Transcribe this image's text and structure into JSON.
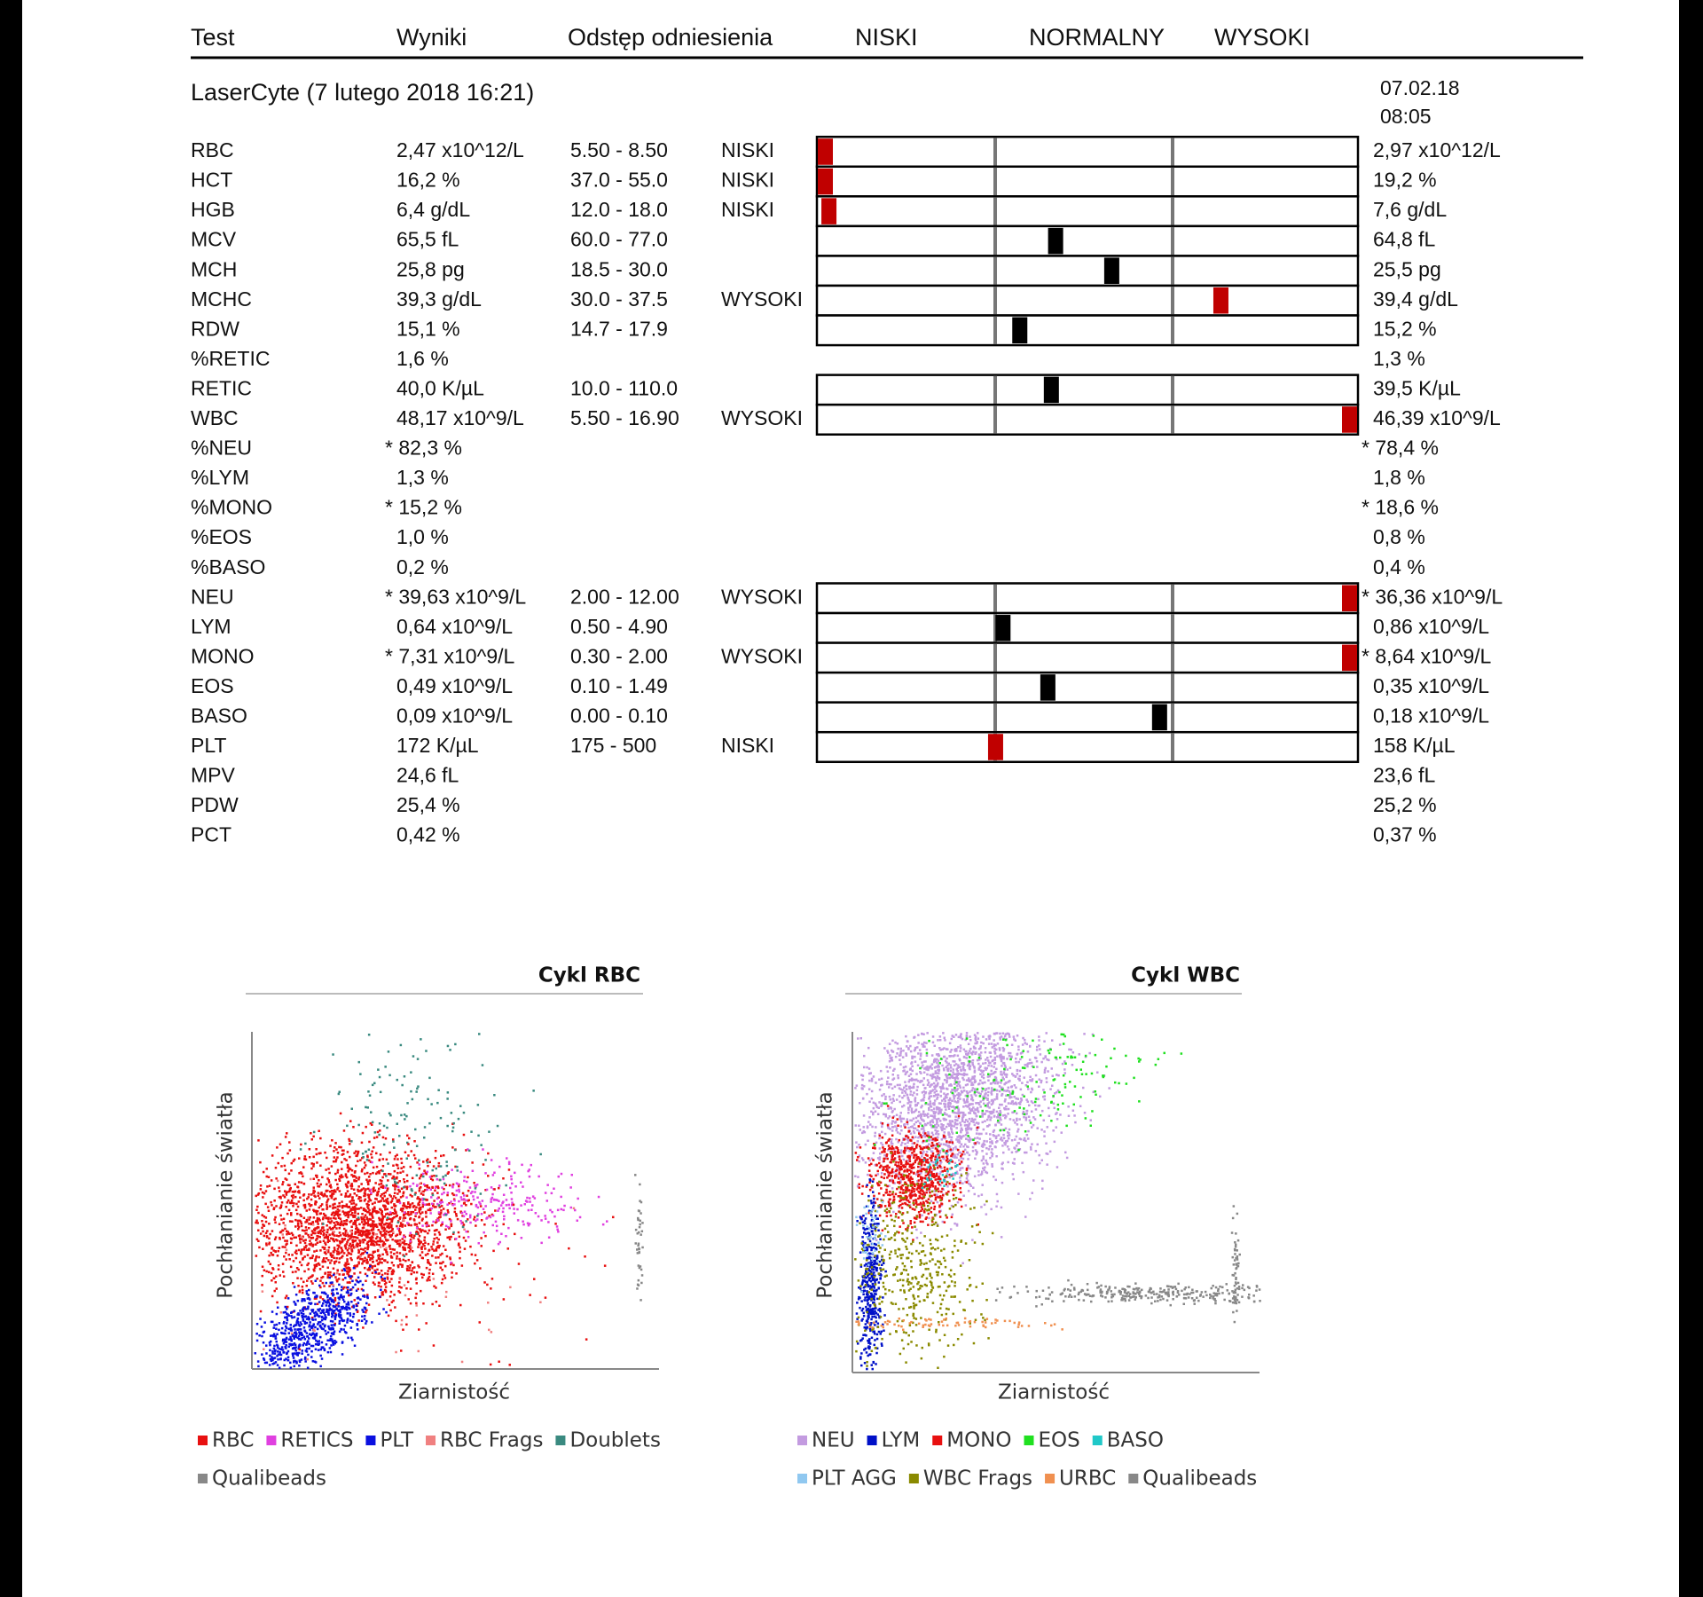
{
  "header": {
    "columns": [
      "Test",
      "Wyniki",
      "Odstęp odniesienia",
      "NISKI",
      "NORMALNY",
      "WYSOKI"
    ]
  },
  "section": {
    "title": "LaserCyte (7 lutego 2018 16:21)",
    "previous_date": "07.02.18",
    "previous_time": "08:05"
  },
  "alert_color": "#c00000",
  "rows": [
    {
      "test": "RBC",
      "result": "2,47 x10^12/L",
      "range": "5.50 - 8.50",
      "flag": "NISKI",
      "previous": "2,97 x10^12/L",
      "previous_alert": true
    },
    {
      "test": "HCT",
      "result": "16,2 %",
      "range": "37.0 - 55.0",
      "flag": "NISKI",
      "previous": "19,2 %",
      "previous_alert": true
    },
    {
      "test": "HGB",
      "result": "6,4 g/dL",
      "range": "12.0 - 18.0",
      "flag": "NISKI",
      "previous": "7,6 g/dL",
      "previous_alert": true
    },
    {
      "test": "MCV",
      "result": "65,5 fL",
      "range": "60.0 - 77.0",
      "previous": "64,8 fL"
    },
    {
      "test": "MCH",
      "result": "25,8 pg",
      "range": "18.5 - 30.0",
      "previous": "25,5 pg"
    },
    {
      "test": "MCHC",
      "result": "39,3 g/dL",
      "range": "30.0 - 37.5",
      "flag": "WYSOKI",
      "previous": "39,4 g/dL",
      "previous_alert": true
    },
    {
      "test": "RDW",
      "result": "15,1 %",
      "range": "14.7 - 17.9",
      "previous": "15,2 %"
    },
    {
      "test": "%RETIC",
      "result": "1,6 %",
      "previous": "1,3 %"
    },
    {
      "test": "RETIC",
      "result": "40,0 K/µL",
      "range": "10.0 - 110.0",
      "previous": "39,5 K/µL"
    },
    {
      "test": "WBC",
      "result": "48,17 x10^9/L",
      "range": "5.50 - 16.90",
      "flag": "WYSOKI",
      "previous": "46,39 x10^9/L",
      "previous_alert": true
    },
    {
      "test": "%NEU",
      "result": "* 82,3 %",
      "previous": "* 78,4 %"
    },
    {
      "test": "%LYM",
      "result": "1,3 %",
      "previous": "1,8 %"
    },
    {
      "test": "%MONO",
      "result": "* 15,2 %",
      "previous": "* 18,6 %"
    },
    {
      "test": "%EOS",
      "result": "1,0 %",
      "previous": "0,8 %"
    },
    {
      "test": "%BASO",
      "result": "0,2 %",
      "previous": "0,4 %"
    },
    {
      "test": "NEU",
      "result": "* 39,63 x10^9/L",
      "range": "2.00 - 12.00",
      "flag": "WYSOKI",
      "previous": "* 36,36 x10^9/L",
      "previous_alert": true
    },
    {
      "test": "LYM",
      "result": "0,64 x10^9/L",
      "range": "0.50 - 4.90",
      "previous": "0,86 x10^9/L"
    },
    {
      "test": "MONO",
      "result": "* 7,31 x10^9/L",
      "range": "0.30 - 2.00",
      "flag": "WYSOKI",
      "previous": "* 8,64 x10^9/L",
      "previous_alert": true
    },
    {
      "test": "EOS",
      "result": "0,49 x10^9/L",
      "range": "0.10 - 1.49",
      "previous": "0,35 x10^9/L"
    },
    {
      "test": "BASO",
      "result": "0,09 x10^9/L",
      "range": "0.00 - 0.10",
      "previous": "0,18 x10^9/L",
      "previous_alert": true
    },
    {
      "test": "PLT",
      "result": "172 K/µL",
      "range": "175 - 500",
      "flag": "NISKI",
      "previous": "158 K/µL",
      "previous_alert": true
    },
    {
      "test": "MPV",
      "result": "24,6 fL",
      "previous": "23,6 fL"
    },
    {
      "test": "PDW",
      "result": "25,4 %",
      "previous": "25,2 %"
    },
    {
      "test": "PCT",
      "result": "0,42 %",
      "previous": "0,37 %"
    }
  ],
  "plots": [
    {
      "title": "Cykl RBC",
      "y_label": "Pochłanianie światła",
      "x_label": "Ziarnistość",
      "legend": [
        [
          {
            "name": "RBC",
            "color": "#e81010"
          },
          {
            "name": "RETICS",
            "color": "#e040e0"
          },
          {
            "name": "PLT",
            "color": "#0a10e0"
          },
          {
            "name": "RBC Frags",
            "color": "#f08080"
          },
          {
            "name": "Doublets",
            "color": "#3a8a80"
          }
        ],
        [
          {
            "name": "Qualibeads",
            "color": "#888888"
          }
        ]
      ]
    },
    {
      "title": "Cykl WBC",
      "y_label": "Pochłanianie światła",
      "x_label": "Ziarnistość",
      "legend": [
        [
          {
            "name": "NEU",
            "color": "#c39be0"
          },
          {
            "name": "LYM",
            "color": "#0010c8"
          },
          {
            "name": "MONO",
            "color": "#e81010"
          },
          {
            "name": "EOS",
            "color": "#20e020"
          },
          {
            "name": "BASO",
            "color": "#20c8c8"
          }
        ],
        [
          {
            "name": "PLT AGG",
            "color": "#90c8f0"
          },
          {
            "name": "WBC Frags",
            "color": "#8a8a00"
          },
          {
            "name": "URBC",
            "color": "#f09050"
          },
          {
            "name": "Qualibeads",
            "color": "#888888"
          }
        ]
      ]
    }
  ]
}
